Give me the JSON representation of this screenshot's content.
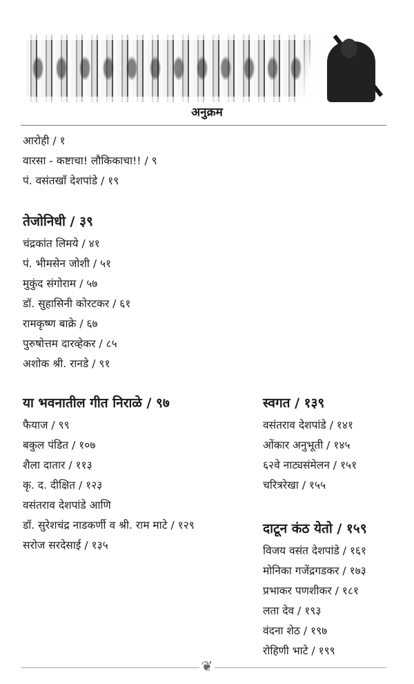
{
  "title": "अनुक्रम",
  "intro": [
    {
      "label": "आरोही / १"
    },
    {
      "label": "वारसा - कष्टाचा! लौकिकाचा!! / ९"
    },
    {
      "label": "पं. वसंतखाँ देशपांडे / १९"
    }
  ],
  "sections": [
    {
      "heading": "तेजोनिधी / ३९",
      "items": [
        {
          "label": "चंद्रकांत लिमये / ४१"
        },
        {
          "label": "पं. भीमसेन जोशी / ५१"
        },
        {
          "label": "मुकुंद संगोराम / ५७"
        },
        {
          "label": "डॉ. सुहासिनी कोरटकर / ६१"
        },
        {
          "label": "रामकृष्ण बाक्रे / ६७"
        },
        {
          "label": "पुरुषोत्तम दारव्हेकर / ८५"
        },
        {
          "label": "अशोक श्री. रानडे / ९१"
        }
      ]
    },
    {
      "heading": "या भवनातील गीत निराळे / ९७",
      "items": [
        {
          "label": "फैयाज / ९९"
        },
        {
          "label": "बकुल पंडित / १०७"
        },
        {
          "label": "शैला दातार / ११३"
        },
        {
          "label": "कृ. द. दीक्षित / १२३"
        },
        {
          "label": "वसंतराव देशपांडे आणि"
        },
        {
          "label": "डॉ. सुरेशचंद्र नाडकर्णी व श्री. राम माटे / १२९"
        },
        {
          "label": "सरोज सरदेसाई / १३५"
        }
      ]
    },
    {
      "heading": "स्वगत / १३९",
      "items": [
        {
          "label": "वसंतराव देशपांडे / १४१"
        },
        {
          "label": "ओंकार अनुभूती / १४५"
        },
        {
          "label": "६२वे नाट्यसंमेलन / १५१"
        },
        {
          "label": "चरित्ररेखा / १५५"
        }
      ]
    },
    {
      "heading": "दाटून कंठ येतो / १५९",
      "items": [
        {
          "label": "विजय वसंत देशपांडे / १६१"
        },
        {
          "label": "मोनिका गजेंद्रगडकर / १७३"
        },
        {
          "label": "प्रभाकर पणशीकर / १८१"
        },
        {
          "label": "लता देव / १९३"
        },
        {
          "label": "वंदना शेठ / १९७"
        },
        {
          "label": "रोहिणी भाटे / १९९"
        }
      ]
    }
  ]
}
